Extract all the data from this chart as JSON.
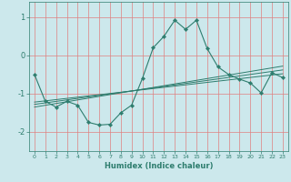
{
  "xlabel": "Humidex (Indice chaleur)",
  "bg_color": "#cce8ec",
  "line_color": "#2e7d6e",
  "grid_color": "#e08080",
  "xlim": [
    -0.5,
    23.5
  ],
  "ylim": [
    -2.5,
    1.4
  ],
  "yticks": [
    -2,
    -1,
    0,
    1
  ],
  "xticks": [
    0,
    1,
    2,
    3,
    4,
    5,
    6,
    7,
    8,
    9,
    10,
    11,
    12,
    13,
    14,
    15,
    16,
    17,
    18,
    19,
    20,
    21,
    22,
    23
  ],
  "main_line_x": [
    0,
    1,
    2,
    3,
    4,
    5,
    6,
    7,
    8,
    9,
    10,
    11,
    12,
    13,
    14,
    15,
    16,
    17,
    18,
    19,
    20,
    21,
    22,
    23
  ],
  "main_line_y": [
    -0.5,
    -1.2,
    -1.35,
    -1.2,
    -1.3,
    -1.75,
    -1.82,
    -1.8,
    -1.5,
    -1.3,
    -0.6,
    0.2,
    0.5,
    0.92,
    0.68,
    0.92,
    0.18,
    -0.3,
    -0.5,
    -0.62,
    -0.72,
    -0.98,
    -0.45,
    -0.58
  ],
  "regression_lines": [
    {
      "x": [
        0,
        23
      ],
      "y": [
        -1.22,
        -0.48
      ]
    },
    {
      "x": [
        0,
        23
      ],
      "y": [
        -1.28,
        -0.38
      ]
    },
    {
      "x": [
        0,
        23
      ],
      "y": [
        -1.35,
        -0.28
      ]
    }
  ]
}
